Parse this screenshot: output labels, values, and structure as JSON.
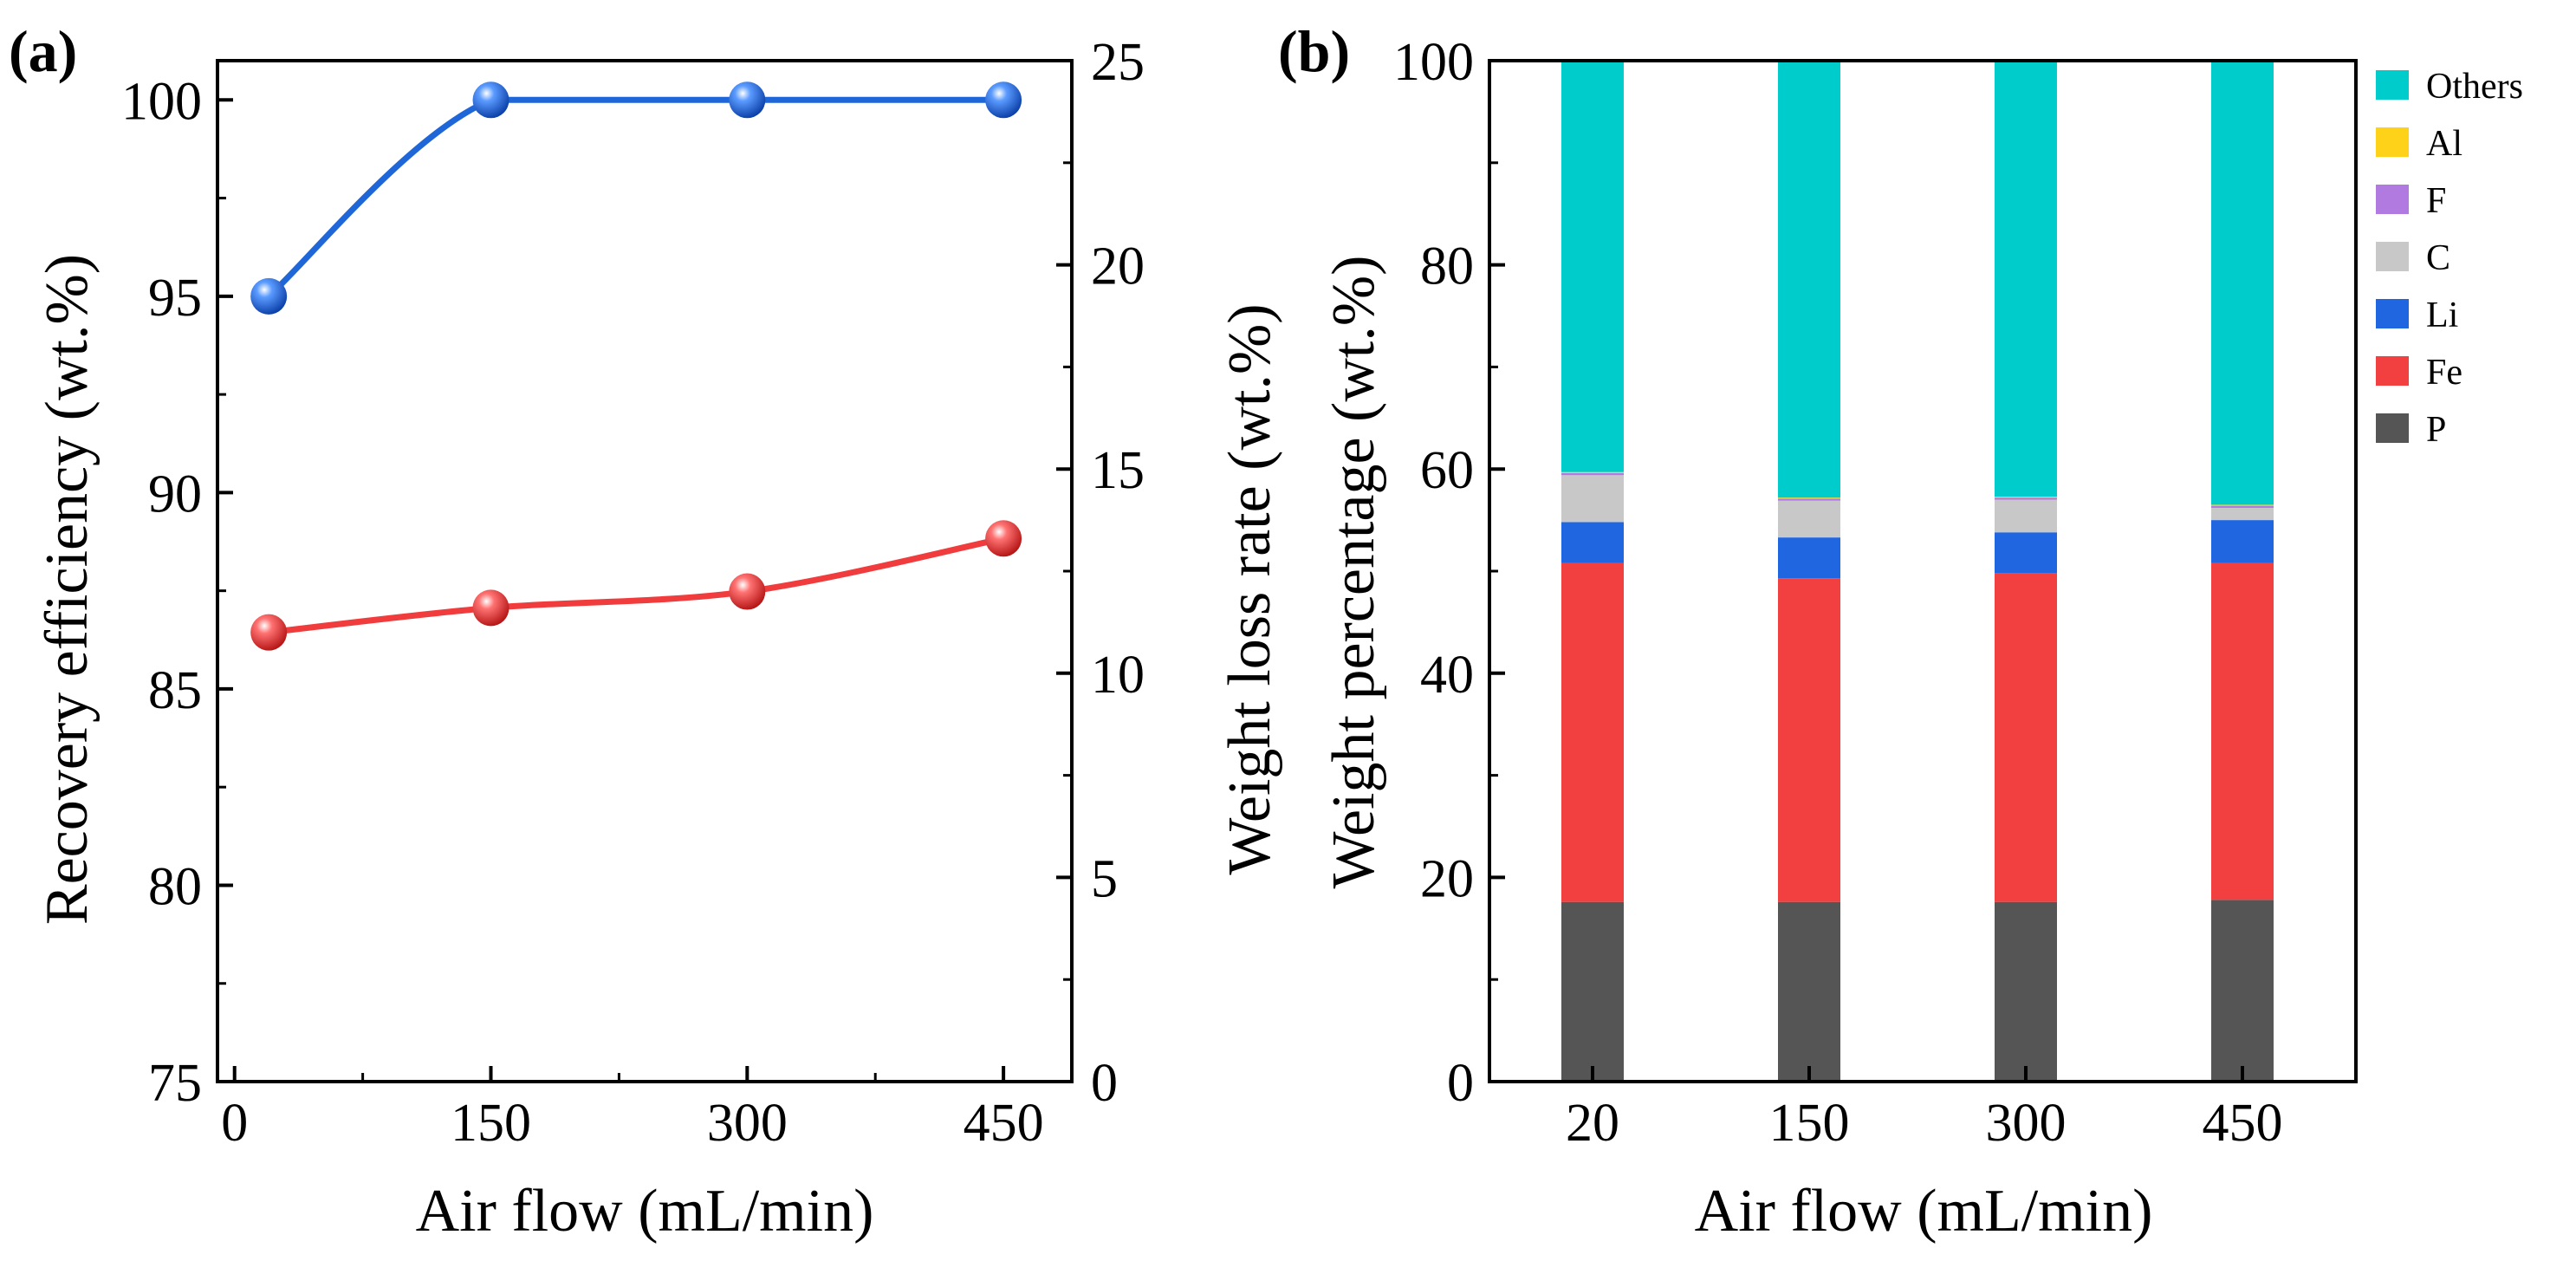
{
  "chart_data": [
    {
      "panel_label": "(a)",
      "type": "line",
      "xlabel": "Air flow (mL/min)",
      "ylabel": "Recovery efficiency (wt.%)",
      "y2label": "Weight loss rate (wt.%)",
      "xlim": [
        -10,
        490
      ],
      "ylim": [
        75,
        101
      ],
      "y2lim": [
        0,
        25
      ],
      "xticks": [
        0,
        150,
        300,
        450
      ],
      "yticks": [
        75,
        80,
        85,
        90,
        95,
        100
      ],
      "y2ticks": [
        0,
        5,
        10,
        15,
        20,
        25
      ],
      "x": [
        20,
        150,
        300,
        450
      ],
      "series": [
        {
          "name": "Recovery efficiency",
          "axis": "left",
          "color": "#1f66d9",
          "values": [
            95.0,
            100.0,
            100.0,
            100.0
          ]
        },
        {
          "name": "Weight loss rate",
          "axis": "right",
          "color": "#f03c3c",
          "values": [
            11.0,
            11.6,
            12.0,
            13.3
          ]
        }
      ]
    },
    {
      "panel_label": "(b)",
      "type": "bar",
      "stacked": true,
      "xlabel": "Air flow (mL/min)",
      "ylabel": "Weight percentage (wt.%)",
      "ylim": [
        0,
        100
      ],
      "yticks": [
        0,
        20,
        40,
        60,
        80,
        100
      ],
      "categories": [
        "20",
        "150",
        "300",
        "450"
      ],
      "legend_position": "top-right",
      "series": [
        {
          "name": "P",
          "color": "#555555",
          "values": [
            17.6,
            17.6,
            17.6,
            17.8
          ]
        },
        {
          "name": "Fe",
          "color": "#f24040",
          "values": [
            33.2,
            31.7,
            32.2,
            33.0
          ]
        },
        {
          "name": "Li",
          "color": "#1f66e0",
          "values": [
            4.0,
            4.0,
            4.0,
            4.2
          ]
        },
        {
          "name": "C",
          "color": "#c8c8c8",
          "values": [
            4.6,
            3.6,
            3.2,
            1.2
          ]
        },
        {
          "name": "F",
          "color": "#b07ae0",
          "values": [
            0.2,
            0.2,
            0.2,
            0.2
          ]
        },
        {
          "name": "Al",
          "color": "#ffd21a",
          "values": [
            0.1,
            0.1,
            0.1,
            0.1
          ]
        },
        {
          "name": "Others",
          "color": "#00cccc",
          "values": [
            40.3,
            42.8,
            42.7,
            43.5
          ]
        }
      ]
    }
  ]
}
